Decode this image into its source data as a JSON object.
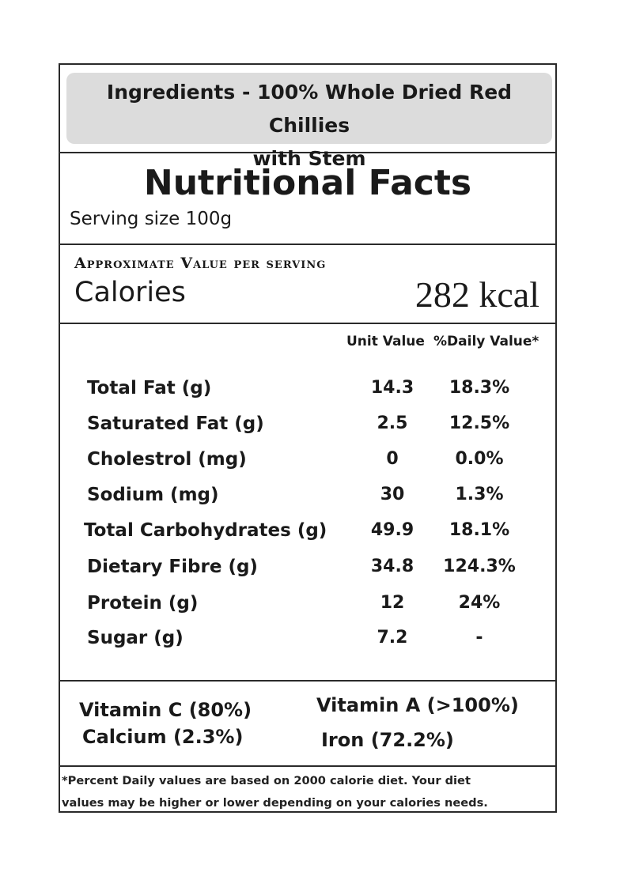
{
  "ingredients": {
    "line1": "Ingredients - 100% Whole Dried Red Chillies",
    "line2": "with Stem"
  },
  "facts": {
    "title": "Nutritional Facts",
    "serving_size": "Serving size 100g"
  },
  "calories": {
    "heading": "Approximate Value per serving",
    "label": "Calories",
    "value": "282 kcal"
  },
  "table": {
    "col_unit": "Unit Value",
    "col_dv": "%Daily Value*",
    "rows": [
      {
        "name": "Total Fat (g)",
        "unit": "14.3",
        "dv": "18.3%"
      },
      {
        "name": "Saturated Fat (g)",
        "unit": "2.5",
        "dv": "12.5%"
      },
      {
        "name": "Cholestrol (mg)",
        "unit": "0",
        "dv": "0.0%"
      },
      {
        "name": "Sodium (mg)",
        "unit": "30",
        "dv": "1.3%"
      },
      {
        "name": "Total Carbohydrates (g)",
        "unit": "49.9",
        "dv": "18.1%"
      },
      {
        "name": "Dietary Fibre (g)",
        "unit": "34.8",
        "dv": "124.3%"
      },
      {
        "name": "Protein (g)",
        "unit": "12",
        "dv": "24%"
      },
      {
        "name": "Sugar (g)",
        "unit": "7.2",
        "dv": "-"
      }
    ]
  },
  "vitamins": {
    "vitamin_c": "Vitamin C (80%)",
    "vitamin_a": "Vitamin A (>100%)",
    "calcium": "Calcium (2.3%)",
    "iron": "Iron (72.2%)"
  },
  "footnote": {
    "line1": "*Percent Daily values are based on 2000 calorie diet. Your diet",
    "line2": "values may be higher or lower depending on your calories needs."
  }
}
